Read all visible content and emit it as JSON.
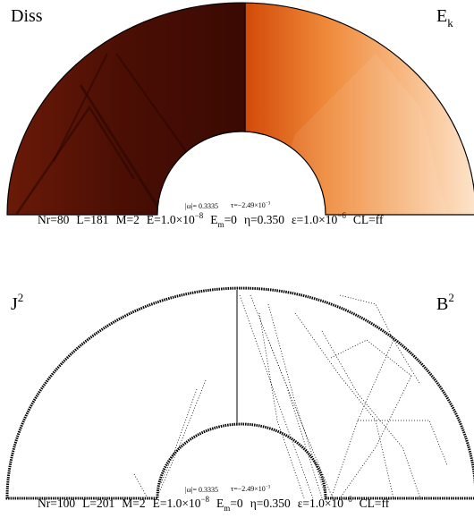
{
  "panels": [
    {
      "left_label": "Diss",
      "right_label": {
        "base": "E",
        "sub": "k"
      },
      "omega": "|ω|= 0.3335",
      "tau": {
        "base": "τ=−2.49×10",
        "sup": "−3"
      },
      "params": [
        "Nr=80",
        "L=181",
        "M=2"
      ],
      "ekman": {
        "base": "E=1.0×10",
        "sup": "−8"
      },
      "em": {
        "base": "E",
        "sub": "m",
        "rest": "=0"
      },
      "eta": "η=0.350",
      "eps": {
        "base": "ε=1.0×10",
        "sup": "−6"
      },
      "cl": "CL=ff"
    },
    {
      "left_label": {
        "base": "J",
        "sup": "2"
      },
      "right_label": {
        "base": "B",
        "sup": "2"
      },
      "omega": "|ω|= 0.3335",
      "tau": {
        "base": "τ=−2.49×10",
        "sup": "−3"
      },
      "params": [
        "Nr=100",
        "L=201",
        "M=2"
      ],
      "ekman": {
        "base": "E=1.0×10",
        "sup": "−8"
      },
      "em": {
        "base": "E",
        "sub": "m",
        "rest": "=0"
      },
      "eta": "η=0.350",
      "eps": {
        "base": "ε=1.0×10",
        "sup": "−6"
      },
      "cl": "CL=ff"
    }
  ]
}
